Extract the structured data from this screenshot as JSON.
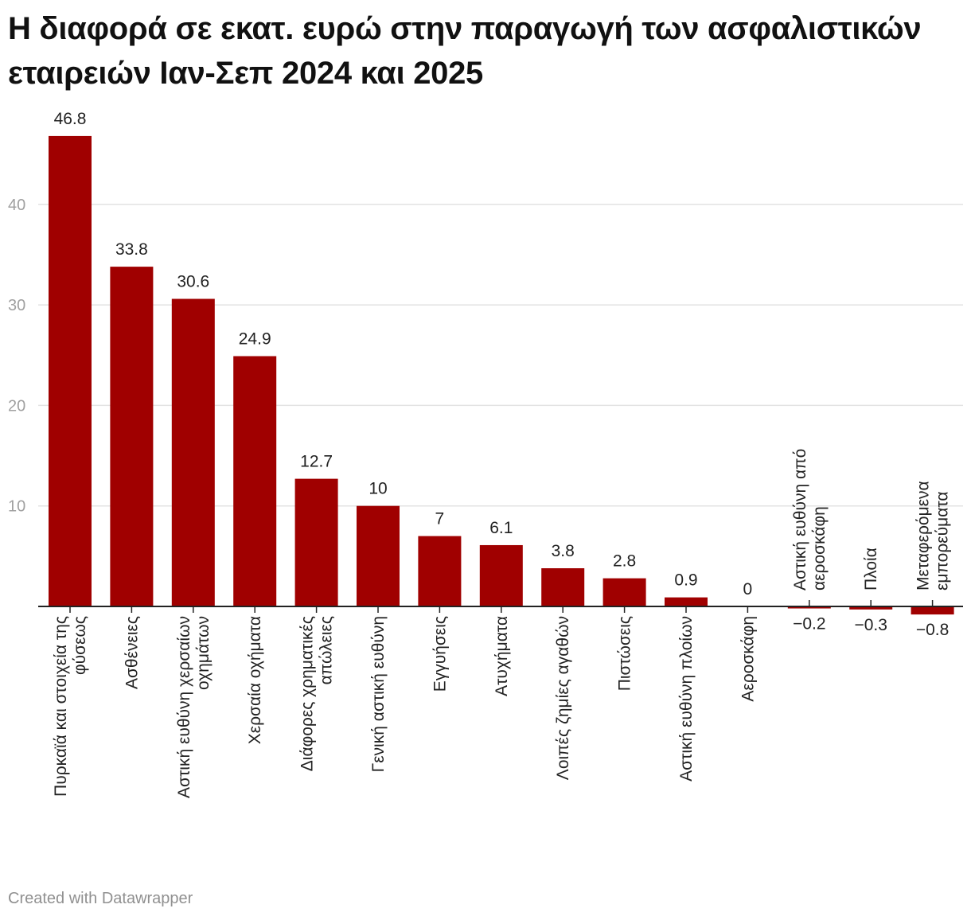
{
  "chart_data": {
    "type": "bar",
    "title": "Η διαφορά σε εκατ. ευρώ στην παραγωγή των ασφαλιστικών εταιρειών Ιαν-Σεπ 2024 και 2025",
    "footer": "Created with Datawrapper",
    "ylim": [
      -0.8,
      48
    ],
    "yticks": [
      10,
      20,
      30,
      40
    ],
    "grid": true,
    "bar_color": "#a00000",
    "categories": [
      [
        "Πυρκαϊά και στοιχεία της",
        "φύσεως"
      ],
      [
        "Ασθένειες"
      ],
      [
        "Αστική ευθύνη χερσαίων",
        "οχημάτων"
      ],
      [
        "Χερσαία οχήματα"
      ],
      [
        "Διάφορες χρηματικές",
        "απώλειες"
      ],
      [
        "Γενική αστική ευθύνη"
      ],
      [
        "Εγγυήσεις"
      ],
      [
        "Ατυχήματα"
      ],
      [
        "Λοιπές ζημίες αγαθών"
      ],
      [
        "Πιστώσεις"
      ],
      [
        "Αστική ευθύνη πλοίων"
      ],
      [
        "Αεροσκάφη"
      ],
      [
        "Αστική ευθύνη από",
        "αεροσκάφη"
      ],
      [
        "Πλοία"
      ],
      [
        "Μεταφερόμενα",
        "εμπορεύματα"
      ]
    ],
    "values": [
      46.8,
      33.8,
      30.6,
      24.9,
      12.7,
      10,
      7,
      6.1,
      3.8,
      2.8,
      0.9,
      0,
      -0.2,
      -0.3,
      -0.8
    ],
    "value_labels": [
      "46.8",
      "33.8",
      "30.6",
      "24.9",
      "12.7",
      "10",
      "7",
      "6.1",
      "3.8",
      "2.8",
      "0.9",
      "0",
      "−0.2",
      "−0.3",
      "−0.8"
    ]
  }
}
